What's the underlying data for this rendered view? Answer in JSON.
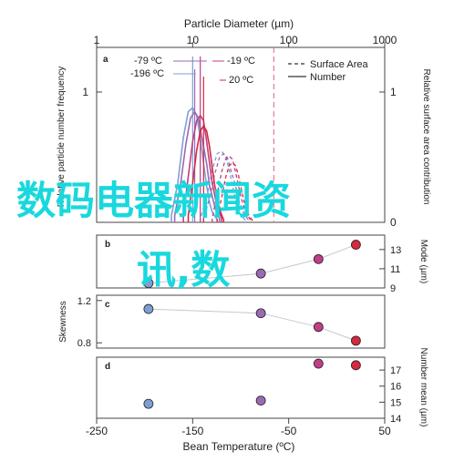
{
  "chart_data": [
    {
      "panel": "a",
      "type": "line",
      "title": "",
      "top_xlabel": "Particle Diameter (µm)",
      "top_xticks": [
        "1",
        "10",
        "100",
        "1000"
      ],
      "left_ylabel": "Relative particle number frequency",
      "right_ylabel": "Relative surface area contribution",
      "left_yticks": [
        "1"
      ],
      "right_yticks": [
        "1",
        "0"
      ],
      "x_scale": "log",
      "xlim": [
        1,
        1000
      ],
      "legend": {
        "position": "top-right",
        "entries": [
          {
            "label": "Surface Area",
            "style": "dashed"
          },
          {
            "label": "Number",
            "style": "solid"
          }
        ]
      },
      "annotations": [
        "-79 ºC",
        "-196 ºC",
        "-19 ºC",
        "20 ºC"
      ],
      "marker_line": {
        "x": 70,
        "style": "dashed",
        "color": "#e87a90"
      },
      "series": [
        {
          "name": "-196 ºC",
          "color": "#7f9fd2",
          "x": [
            6,
            7,
            8,
            9,
            10,
            11,
            12,
            13,
            14,
            15,
            16,
            18
          ],
          "number": [
            0.05,
            0.3,
            0.65,
            0.85,
            0.88,
            0.82,
            0.65,
            0.45,
            0.28,
            0.15,
            0.08,
            0.02
          ]
        },
        {
          "name": "-79 ºC",
          "color": "#9b6ab4",
          "x": [
            6.5,
            7.5,
            8.5,
            9.5,
            10.5,
            11.5,
            12.5,
            14,
            15,
            17,
            19
          ],
          "number": [
            0.05,
            0.3,
            0.6,
            0.8,
            0.85,
            0.8,
            0.65,
            0.45,
            0.28,
            0.12,
            0.03
          ]
        },
        {
          "name": "-19 ºC",
          "color": "#c03f86",
          "x": [
            8,
            9,
            10,
            11,
            12,
            13,
            14,
            15,
            16,
            18,
            20
          ],
          "number": [
            0.05,
            0.35,
            0.62,
            0.78,
            0.82,
            0.78,
            0.62,
            0.45,
            0.3,
            0.12,
            0.03
          ]
        },
        {
          "name": "20 ºC",
          "color": "#d6283f",
          "x": [
            9,
            10,
            11,
            12,
            13,
            14,
            15,
            16,
            17,
            19,
            21
          ],
          "number": [
            0.05,
            0.3,
            0.55,
            0.7,
            0.74,
            0.7,
            0.58,
            0.42,
            0.28,
            0.1,
            0.02
          ]
        }
      ]
    },
    {
      "panel": "b",
      "type": "scatter",
      "ylabel": "Mode (µm)",
      "yticks": [
        "9",
        "11",
        "13"
      ],
      "ylim": [
        9,
        14.5
      ],
      "x": [
        -196,
        -79,
        -19,
        20
      ],
      "y": [
        9.5,
        10.5,
        12,
        13.5
      ],
      "colors": [
        "#7f9fd2",
        "#9b6ab4",
        "#c03f86",
        "#d6283f"
      ]
    },
    {
      "panel": "c",
      "type": "scatter",
      "ylabel": "Skewness",
      "yticks": [
        "0.8",
        "1.2"
      ],
      "ylim": [
        0.75,
        1.25
      ],
      "x": [
        -196,
        -79,
        -19,
        20
      ],
      "y": [
        1.12,
        1.08,
        0.95,
        0.82
      ],
      "colors": [
        "#7f9fd2",
        "#9b6ab4",
        "#c03f86",
        "#d6283f"
      ]
    },
    {
      "panel": "d",
      "type": "scatter",
      "ylabel": "Number mean (µm)",
      "yticks": [
        "14",
        "15",
        "16",
        "17"
      ],
      "ylim": [
        14,
        17.8
      ],
      "x": [
        -196,
        -79,
        -19,
        20
      ],
      "y": [
        14.9,
        15.1,
        17.4,
        17.3
      ],
      "colors": [
        "#7f9fd2",
        "#9b6ab4",
        "#c03f86",
        "#d6283f"
      ]
    }
  ],
  "bottom_axis": {
    "xlabel": "Bean Temperature (ºC)",
    "xticks": [
      "-250",
      "-150",
      "-50",
      "50"
    ],
    "xlim": [
      -250,
      50
    ]
  },
  "overlay_text": {
    "line1": "数码电器新闻资",
    "line2": "讯,数"
  }
}
